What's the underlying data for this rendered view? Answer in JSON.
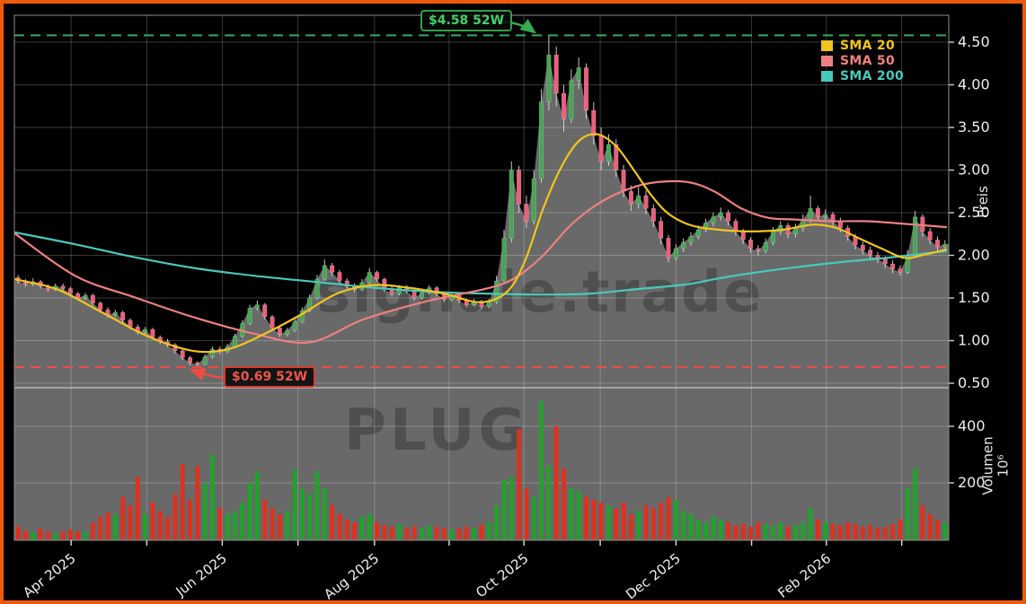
{
  "frame_color": "#ee5a0c",
  "chart_data": {
    "type": "candlestick",
    "symbol": "PLUG",
    "watermark_site": "signale.trade",
    "watermark_symbol": "PLUG",
    "price_axis": {
      "title": "Preis",
      "ticks": [
        {
          "v": 4.5,
          "label": "4.50"
        },
        {
          "v": 4.0,
          "label": "4.00"
        },
        {
          "v": 3.5,
          "label": "3.50"
        },
        {
          "v": 3.0,
          "label": "3.00"
        },
        {
          "v": 2.5,
          "label": "2.50"
        },
        {
          "v": 2.0,
          "label": "2.00"
        },
        {
          "v": 1.5,
          "label": "1.50"
        },
        {
          "v": 1.0,
          "label": "1.00"
        },
        {
          "v": 0.5,
          "label": "0.50"
        }
      ]
    },
    "volume_axis": {
      "title": "Volumen",
      "unit": "10⁶",
      "ticks": [
        {
          "v": 400,
          "label": "400"
        },
        {
          "v": 200,
          "label": "200"
        }
      ]
    },
    "x_axis": {
      "ticks": [
        {
          "t": 0.0607,
          "label": "Apr 2025"
        },
        {
          "t": 0.1417,
          "label": ""
        },
        {
          "t": 0.2225,
          "label": "Jun 2025"
        },
        {
          "t": 0.3035,
          "label": ""
        },
        {
          "t": 0.3854,
          "label": "Aug 2025"
        },
        {
          "t": 0.4653,
          "label": ""
        },
        {
          "t": 0.5453,
          "label": "Oct 2025"
        },
        {
          "t": 0.627,
          "label": ""
        },
        {
          "t": 0.7081,
          "label": "Dec 2025"
        },
        {
          "t": 0.789,
          "label": ""
        },
        {
          "t": 0.869,
          "label": "Feb 2026"
        },
        {
          "t": 0.9497,
          "label": ""
        }
      ]
    },
    "legend": [
      {
        "label": "SMA 20",
        "color": "#f2c51c"
      },
      {
        "label": "SMA 50",
        "color": "#f08080"
      },
      {
        "label": "SMA 200",
        "color": "#48c9bd"
      }
    ],
    "markers": {
      "high": {
        "label": "$4.58 52W",
        "price": 4.58,
        "color": "#3fd36a",
        "border": "#2ea04a",
        "line": "#35ab52"
      },
      "low": {
        "label": "$0.69 52W",
        "price": 0.69,
        "color": "#f0564d",
        "border": "#d93c34",
        "line": "#ef4b42"
      }
    },
    "colors": {
      "up": "#46a653",
      "down": "#ec5f7a",
      "wick": "#dedede",
      "vol_up": "#1fa32b",
      "vol_down": "#e0301e",
      "fill": "#696969",
      "grid": "rgba(255,255,255,0.22)",
      "border": "#8e8e8e"
    },
    "sma20": [
      [
        0,
        1.72
      ],
      [
        0.046,
        1.6
      ],
      [
        0.094,
        1.33
      ],
      [
        0.143,
        1.05
      ],
      [
        0.191,
        0.88
      ],
      [
        0.229,
        0.9
      ],
      [
        0.268,
        1.08
      ],
      [
        0.306,
        1.3
      ],
      [
        0.345,
        1.55
      ],
      [
        0.383,
        1.65
      ],
      [
        0.422,
        1.62
      ],
      [
        0.46,
        1.55
      ],
      [
        0.499,
        1.45
      ],
      [
        0.528,
        1.58
      ],
      [
        0.547,
        1.95
      ],
      [
        0.566,
        2.55
      ],
      [
        0.586,
        3.05
      ],
      [
        0.605,
        3.35
      ],
      [
        0.624,
        3.42
      ],
      [
        0.644,
        3.28
      ],
      [
        0.663,
        3.0
      ],
      [
        0.682,
        2.7
      ],
      [
        0.701,
        2.48
      ],
      [
        0.725,
        2.35
      ],
      [
        0.754,
        2.3
      ],
      [
        0.788,
        2.28
      ],
      [
        0.822,
        2.3
      ],
      [
        0.855,
        2.36
      ],
      [
        0.88,
        2.32
      ],
      [
        0.904,
        2.2
      ],
      [
        0.928,
        2.08
      ],
      [
        0.952,
        1.97
      ],
      [
        0.971,
        2.0
      ],
      [
        0.998,
        2.07
      ]
    ],
    "sma50": [
      [
        0,
        2.26
      ],
      [
        0.065,
        1.76
      ],
      [
        0.128,
        1.51
      ],
      [
        0.193,
        1.27
      ],
      [
        0.257,
        1.08
      ],
      [
        0.316,
        0.98
      ],
      [
        0.374,
        1.25
      ],
      [
        0.441,
        1.46
      ],
      [
        0.509,
        1.62
      ],
      [
        0.538,
        1.75
      ],
      [
        0.566,
        2.0
      ],
      [
        0.595,
        2.35
      ],
      [
        0.624,
        2.6
      ],
      [
        0.653,
        2.76
      ],
      [
        0.682,
        2.85
      ],
      [
        0.72,
        2.86
      ],
      [
        0.749,
        2.75
      ],
      [
        0.778,
        2.55
      ],
      [
        0.807,
        2.44
      ],
      [
        0.836,
        2.42
      ],
      [
        0.875,
        2.4
      ],
      [
        0.913,
        2.4
      ],
      [
        0.952,
        2.37
      ],
      [
        0.998,
        2.33
      ]
    ],
    "sma200": [
      [
        0,
        2.27
      ],
      [
        0.065,
        2.13
      ],
      [
        0.128,
        1.98
      ],
      [
        0.193,
        1.85
      ],
      [
        0.257,
        1.76
      ],
      [
        0.321,
        1.69
      ],
      [
        0.385,
        1.62
      ],
      [
        0.451,
        1.57
      ],
      [
        0.509,
        1.55
      ],
      [
        0.566,
        1.54
      ],
      [
        0.615,
        1.55
      ],
      [
        0.663,
        1.6
      ],
      [
        0.72,
        1.66
      ],
      [
        0.749,
        1.72
      ],
      [
        0.788,
        1.79
      ],
      [
        0.836,
        1.86
      ],
      [
        0.884,
        1.92
      ],
      [
        0.933,
        1.97
      ],
      [
        0.981,
        2.03
      ],
      [
        0.998,
        2.05
      ]
    ],
    "candles": [
      [
        1.74,
        1.77,
        1.67,
        1.7,
        45
      ],
      [
        1.7,
        1.72,
        1.63,
        1.66,
        30
      ],
      [
        1.66,
        1.73,
        1.64,
        1.69,
        25
      ],
      [
        1.69,
        1.71,
        1.61,
        1.64,
        38
      ],
      [
        1.64,
        1.66,
        1.57,
        1.6,
        28
      ],
      [
        1.6,
        1.67,
        1.58,
        1.64,
        22
      ],
      [
        1.64,
        1.67,
        1.58,
        1.61,
        30
      ],
      [
        1.61,
        1.63,
        1.52,
        1.55,
        35
      ],
      [
        1.55,
        1.57,
        1.47,
        1.5,
        28
      ],
      [
        1.5,
        1.56,
        1.48,
        1.53,
        28
      ],
      [
        1.53,
        1.55,
        1.41,
        1.44,
        60
      ],
      [
        1.44,
        1.46,
        1.33,
        1.36,
        80
      ],
      [
        1.36,
        1.39,
        1.27,
        1.3,
        95
      ],
      [
        1.3,
        1.36,
        1.28,
        1.33,
        90
      ],
      [
        1.33,
        1.35,
        1.21,
        1.24,
        150
      ],
      [
        1.24,
        1.26,
        1.13,
        1.16,
        120
      ],
      [
        1.16,
        1.19,
        1.07,
        1.1,
        220
      ],
      [
        1.1,
        1.16,
        1.08,
        1.13,
        90
      ],
      [
        1.13,
        1.15,
        1.01,
        1.04,
        130
      ],
      [
        1.04,
        1.06,
        0.96,
        0.99,
        100
      ],
      [
        0.99,
        1.02,
        0.92,
        0.95,
        80
      ],
      [
        0.95,
        0.97,
        0.85,
        0.88,
        160
      ],
      [
        0.88,
        0.9,
        0.77,
        0.8,
        265
      ],
      [
        0.8,
        0.82,
        0.71,
        0.74,
        140
      ],
      [
        0.74,
        0.76,
        0.69,
        0.72,
        260
      ],
      [
        0.72,
        0.84,
        0.71,
        0.81,
        200
      ],
      [
        0.81,
        0.93,
        0.79,
        0.9,
        300
      ],
      [
        0.9,
        0.93,
        0.84,
        0.87,
        110
      ],
      [
        0.87,
        0.96,
        0.85,
        0.93,
        90
      ],
      [
        0.93,
        1.08,
        0.91,
        1.05,
        100
      ],
      [
        1.05,
        1.24,
        1.03,
        1.2,
        130
      ],
      [
        1.2,
        1.42,
        1.18,
        1.38,
        200
      ],
      [
        1.38,
        1.47,
        1.35,
        1.42,
        240
      ],
      [
        1.42,
        1.44,
        1.25,
        1.28,
        140
      ],
      [
        1.28,
        1.3,
        1.12,
        1.15,
        110
      ],
      [
        1.15,
        1.18,
        1.04,
        1.07,
        90
      ],
      [
        1.07,
        1.15,
        1.05,
        1.12,
        100
      ],
      [
        1.12,
        1.26,
        1.1,
        1.22,
        245
      ],
      [
        1.22,
        1.39,
        1.2,
        1.35,
        180
      ],
      [
        1.35,
        1.54,
        1.33,
        1.5,
        160
      ],
      [
        1.5,
        1.77,
        1.48,
        1.72,
        240
      ],
      [
        1.72,
        1.95,
        1.7,
        1.88,
        180
      ],
      [
        1.88,
        1.91,
        1.76,
        1.8,
        120
      ],
      [
        1.8,
        1.83,
        1.67,
        1.7,
        90
      ],
      [
        1.7,
        1.73,
        1.61,
        1.64,
        70
      ],
      [
        1.64,
        1.67,
        1.57,
        1.6,
        60
      ],
      [
        1.6,
        1.72,
        1.58,
        1.68,
        80
      ],
      [
        1.68,
        1.85,
        1.66,
        1.8,
        90
      ],
      [
        1.8,
        1.82,
        1.69,
        1.72,
        60
      ],
      [
        1.72,
        1.74,
        1.57,
        1.6,
        50
      ],
      [
        1.6,
        1.63,
        1.52,
        1.55,
        45
      ],
      [
        1.55,
        1.65,
        1.53,
        1.62,
        55
      ],
      [
        1.62,
        1.65,
        1.55,
        1.58,
        40
      ],
      [
        1.58,
        1.6,
        1.47,
        1.5,
        45
      ],
      [
        1.5,
        1.59,
        1.48,
        1.56,
        40
      ],
      [
        1.56,
        1.65,
        1.54,
        1.62,
        50
      ],
      [
        1.62,
        1.64,
        1.52,
        1.55,
        45
      ],
      [
        1.55,
        1.57,
        1.45,
        1.48,
        40
      ],
      [
        1.48,
        1.56,
        1.46,
        1.53,
        35
      ],
      [
        1.53,
        1.55,
        1.44,
        1.47,
        40
      ],
      [
        1.47,
        1.49,
        1.39,
        1.42,
        45
      ],
      [
        1.42,
        1.49,
        1.4,
        1.46,
        40
      ],
      [
        1.46,
        1.48,
        1.37,
        1.4,
        50
      ],
      [
        1.4,
        1.49,
        1.38,
        1.45,
        60
      ],
      [
        1.45,
        1.76,
        1.43,
        1.7,
        120
      ],
      [
        1.7,
        2.3,
        1.68,
        2.2,
        210
      ],
      [
        2.2,
        3.1,
        2.15,
        3.0,
        220
      ],
      [
        3.0,
        3.05,
        2.5,
        2.6,
        390
      ],
      [
        2.6,
        2.7,
        2.32,
        2.4,
        180
      ],
      [
        2.4,
        3.0,
        2.36,
        2.9,
        150
      ],
      [
        2.9,
        3.95,
        2.85,
        3.8,
        490
      ],
      [
        3.8,
        4.58,
        3.7,
        4.35,
        260
      ],
      [
        4.35,
        4.45,
        3.75,
        3.9,
        400
      ],
      [
        3.9,
        4.0,
        3.45,
        3.6,
        250
      ],
      [
        3.6,
        4.18,
        3.55,
        4.05,
        180
      ],
      [
        4.05,
        4.32,
        3.95,
        4.2,
        170
      ],
      [
        4.2,
        4.25,
        3.6,
        3.7,
        150
      ],
      [
        3.7,
        3.8,
        3.3,
        3.4,
        140
      ],
      [
        3.4,
        3.5,
        3.0,
        3.1,
        130
      ],
      [
        3.1,
        3.42,
        3.05,
        3.3,
        120
      ],
      [
        3.3,
        3.36,
        2.92,
        3.0,
        110
      ],
      [
        3.0,
        3.06,
        2.68,
        2.75,
        130
      ],
      [
        2.75,
        2.82,
        2.52,
        2.6,
        90
      ],
      [
        2.6,
        2.8,
        2.55,
        2.7,
        100
      ],
      [
        2.7,
        2.76,
        2.48,
        2.55,
        120
      ],
      [
        2.55,
        2.6,
        2.33,
        2.4,
        110
      ],
      [
        2.4,
        2.45,
        2.13,
        2.2,
        130
      ],
      [
        2.2,
        2.24,
        1.92,
        1.97,
        150
      ],
      [
        1.97,
        2.13,
        1.94,
        2.08,
        140
      ],
      [
        2.08,
        2.2,
        2.04,
        2.15,
        100
      ],
      [
        2.15,
        2.27,
        2.11,
        2.22,
        90
      ],
      [
        2.22,
        2.35,
        2.19,
        2.3,
        70
      ],
      [
        2.3,
        2.43,
        2.27,
        2.38,
        60
      ],
      [
        2.38,
        2.5,
        2.34,
        2.45,
        80
      ],
      [
        2.45,
        2.56,
        2.41,
        2.5,
        70
      ],
      [
        2.5,
        2.53,
        2.35,
        2.4,
        60
      ],
      [
        2.4,
        2.43,
        2.23,
        2.28,
        50
      ],
      [
        2.28,
        2.31,
        2.13,
        2.18,
        55
      ],
      [
        2.18,
        2.21,
        2.03,
        2.08,
        45
      ],
      [
        2.08,
        2.12,
        2.0,
        2.05,
        60
      ],
      [
        2.05,
        2.2,
        2.02,
        2.15,
        55
      ],
      [
        2.15,
        2.33,
        2.12,
        2.28,
        50
      ],
      [
        2.28,
        2.4,
        2.24,
        2.35,
        60
      ],
      [
        2.35,
        2.38,
        2.2,
        2.25,
        45
      ],
      [
        2.25,
        2.37,
        2.21,
        2.32,
        50
      ],
      [
        2.32,
        2.48,
        2.28,
        2.42,
        60
      ],
      [
        2.42,
        2.7,
        2.38,
        2.55,
        110
      ],
      [
        2.55,
        2.58,
        2.4,
        2.45,
        70
      ],
      [
        2.45,
        2.54,
        2.41,
        2.48,
        60
      ],
      [
        2.48,
        2.51,
        2.35,
        2.4,
        55
      ],
      [
        2.4,
        2.44,
        2.27,
        2.32,
        50
      ],
      [
        2.32,
        2.35,
        2.17,
        2.22,
        60
      ],
      [
        2.22,
        2.25,
        2.07,
        2.12,
        55
      ],
      [
        2.12,
        2.16,
        2.01,
        2.06,
        45
      ],
      [
        2.06,
        2.1,
        1.95,
        2.0,
        50
      ],
      [
        2.0,
        2.04,
        1.91,
        1.96,
        40
      ],
      [
        1.96,
        1.99,
        1.85,
        1.9,
        45
      ],
      [
        1.9,
        1.94,
        1.79,
        1.84,
        55
      ],
      [
        1.84,
        1.88,
        1.76,
        1.8,
        70
      ],
      [
        1.8,
        2.06,
        1.78,
        2.0,
        180
      ],
      [
        2.0,
        2.52,
        1.97,
        2.45,
        250
      ],
      [
        2.45,
        2.48,
        2.22,
        2.28,
        120
      ],
      [
        2.28,
        2.32,
        2.13,
        2.18,
        90
      ],
      [
        2.18,
        2.22,
        2.05,
        2.1,
        70
      ],
      [
        2.1,
        2.18,
        2.06,
        2.13,
        60
      ]
    ]
  }
}
